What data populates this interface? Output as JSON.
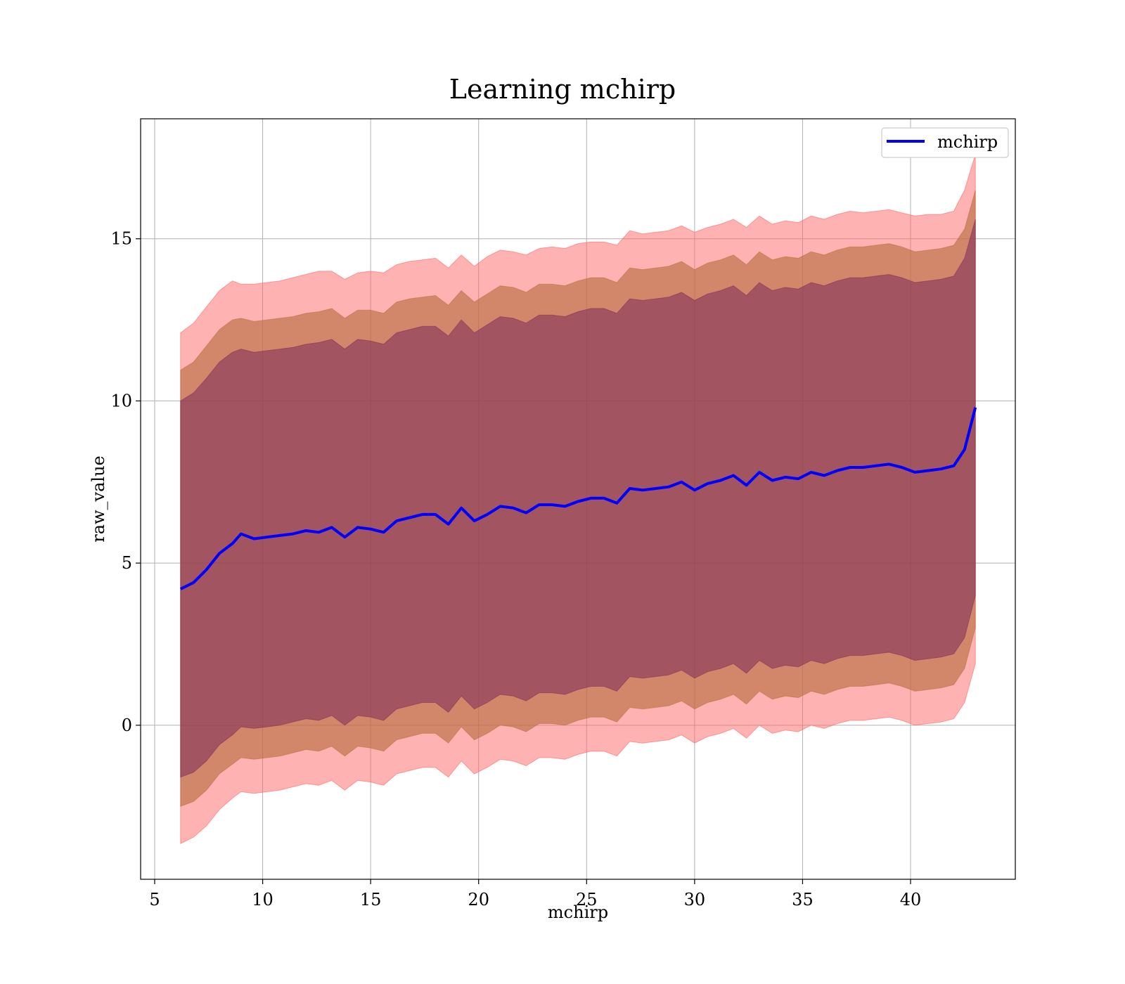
{
  "chart_data": {
    "type": "line",
    "title": "Learning mchirp",
    "xlabel": "mchirp",
    "ylabel": "raw_value",
    "xlim": [
      4.35,
      44.85
    ],
    "ylim": [
      -4.75,
      18.7
    ],
    "xticks": [
      5,
      10,
      15,
      20,
      25,
      30,
      35,
      40
    ],
    "yticks": [
      0,
      5,
      10,
      15
    ],
    "grid": true,
    "legend_position": "top-right",
    "colors": {
      "line": "#0000ff",
      "band_outer": "#ff6666",
      "band_middle": "#b56a3a",
      "band_inner": "#7a2a5a",
      "grid": "#b0b0b0"
    },
    "series": [
      {
        "name": "mchirp",
        "x": [
          6.2,
          6.8,
          7.4,
          8.0,
          8.6,
          9.0,
          9.6,
          10.2,
          10.8,
          11.4,
          12.0,
          12.6,
          13.2,
          13.8,
          14.4,
          15.0,
          15.6,
          16.2,
          16.8,
          17.4,
          18.0,
          18.6,
          19.2,
          19.8,
          20.4,
          21.0,
          21.6,
          22.2,
          22.8,
          23.4,
          24.0,
          24.6,
          25.2,
          25.8,
          26.4,
          27.0,
          27.6,
          28.2,
          28.8,
          29.4,
          30.0,
          30.6,
          31.2,
          31.8,
          32.4,
          33.0,
          33.6,
          34.2,
          34.8,
          35.4,
          36.0,
          36.6,
          37.2,
          37.8,
          38.4,
          39.0,
          39.6,
          40.2,
          40.8,
          41.4,
          42.0,
          42.5,
          43.0
        ],
        "y": [
          4.2,
          4.4,
          4.8,
          5.3,
          5.6,
          5.9,
          5.75,
          5.8,
          5.85,
          5.9,
          6.0,
          5.95,
          6.1,
          5.8,
          6.1,
          6.05,
          5.95,
          6.3,
          6.4,
          6.5,
          6.5,
          6.2,
          6.7,
          6.3,
          6.5,
          6.75,
          6.7,
          6.55,
          6.8,
          6.8,
          6.75,
          6.9,
          7.0,
          7.0,
          6.85,
          7.3,
          7.25,
          7.3,
          7.35,
          7.5,
          7.25,
          7.45,
          7.55,
          7.7,
          7.4,
          7.8,
          7.55,
          7.65,
          7.6,
          7.8,
          7.7,
          7.85,
          7.95,
          7.95,
          8.0,
          8.05,
          7.95,
          7.8,
          7.85,
          7.9,
          8.0,
          8.5,
          9.8
        ]
      }
    ],
    "bands": {
      "outer_upper": [
        12.1,
        12.4,
        12.9,
        13.4,
        13.7,
        13.6,
        13.6,
        13.65,
        13.7,
        13.8,
        13.9,
        14.0,
        14.0,
        13.75,
        13.95,
        14.0,
        13.95,
        14.2,
        14.3,
        14.35,
        14.4,
        14.1,
        14.5,
        14.15,
        14.45,
        14.65,
        14.6,
        14.5,
        14.7,
        14.75,
        14.7,
        14.85,
        14.9,
        14.9,
        14.8,
        15.25,
        15.15,
        15.2,
        15.25,
        15.4,
        15.2,
        15.35,
        15.45,
        15.6,
        15.35,
        15.7,
        15.45,
        15.55,
        15.5,
        15.7,
        15.6,
        15.75,
        15.85,
        15.8,
        15.85,
        15.9,
        15.8,
        15.7,
        15.75,
        15.75,
        15.85,
        16.5,
        17.6
      ],
      "middle_upper": [
        10.95,
        11.2,
        11.7,
        12.2,
        12.5,
        12.55,
        12.45,
        12.5,
        12.55,
        12.6,
        12.7,
        12.75,
        12.85,
        12.55,
        12.8,
        12.8,
        12.7,
        13.05,
        13.15,
        13.2,
        13.25,
        12.95,
        13.4,
        13.05,
        13.3,
        13.55,
        13.5,
        13.35,
        13.6,
        13.6,
        13.55,
        13.7,
        13.8,
        13.8,
        13.65,
        14.1,
        14.05,
        14.1,
        14.15,
        14.3,
        14.05,
        14.25,
        14.35,
        14.5,
        14.2,
        14.6,
        14.35,
        14.45,
        14.4,
        14.6,
        14.5,
        14.65,
        14.75,
        14.75,
        14.8,
        14.85,
        14.75,
        14.6,
        14.65,
        14.7,
        14.8,
        15.3,
        16.5
      ],
      "inner_upper": [
        10.0,
        10.25,
        10.7,
        11.2,
        11.5,
        11.6,
        11.5,
        11.55,
        11.6,
        11.65,
        11.75,
        11.8,
        11.9,
        11.6,
        11.9,
        11.85,
        11.75,
        12.1,
        12.2,
        12.3,
        12.3,
        12.0,
        12.5,
        12.1,
        12.35,
        12.6,
        12.55,
        12.4,
        12.65,
        12.65,
        12.6,
        12.75,
        12.85,
        12.85,
        12.7,
        13.15,
        13.1,
        13.15,
        13.2,
        13.35,
        13.1,
        13.3,
        13.4,
        13.55,
        13.25,
        13.65,
        13.4,
        13.5,
        13.45,
        13.65,
        13.55,
        13.7,
        13.8,
        13.8,
        13.85,
        13.9,
        13.8,
        13.65,
        13.7,
        13.75,
        13.85,
        14.4,
        15.6
      ],
      "inner_lower": [
        -1.6,
        -1.45,
        -1.1,
        -0.6,
        -0.3,
        -0.05,
        -0.1,
        -0.05,
        0.0,
        0.1,
        0.2,
        0.15,
        0.3,
        0.0,
        0.3,
        0.25,
        0.15,
        0.5,
        0.6,
        0.7,
        0.7,
        0.4,
        0.9,
        0.5,
        0.7,
        0.95,
        0.9,
        0.75,
        1.0,
        1.0,
        0.95,
        1.1,
        1.2,
        1.2,
        1.05,
        1.5,
        1.45,
        1.5,
        1.55,
        1.7,
        1.45,
        1.65,
        1.75,
        1.9,
        1.6,
        2.0,
        1.75,
        1.85,
        1.8,
        2.0,
        1.9,
        2.05,
        2.15,
        2.15,
        2.2,
        2.25,
        2.15,
        2.0,
        2.05,
        2.1,
        2.2,
        2.7,
        4.0
      ],
      "middle_lower": [
        -2.5,
        -2.35,
        -2.0,
        -1.5,
        -1.2,
        -1.0,
        -1.05,
        -1.0,
        -0.95,
        -0.85,
        -0.75,
        -0.8,
        -0.65,
        -0.95,
        -0.65,
        -0.7,
        -0.8,
        -0.45,
        -0.35,
        -0.25,
        -0.25,
        -0.55,
        -0.05,
        -0.45,
        -0.25,
        0.0,
        -0.05,
        -0.2,
        0.05,
        0.05,
        0.0,
        0.15,
        0.25,
        0.25,
        0.1,
        0.55,
        0.5,
        0.55,
        0.6,
        0.75,
        0.5,
        0.7,
        0.8,
        0.95,
        0.65,
        1.05,
        0.8,
        0.9,
        0.85,
        1.05,
        0.95,
        1.1,
        1.2,
        1.2,
        1.25,
        1.3,
        1.2,
        1.05,
        1.1,
        1.15,
        1.25,
        1.75,
        3.0
      ],
      "outer_lower": [
        -3.65,
        -3.45,
        -3.1,
        -2.6,
        -2.25,
        -2.05,
        -2.1,
        -2.05,
        -2.0,
        -1.9,
        -1.8,
        -1.85,
        -1.7,
        -2.0,
        -1.7,
        -1.75,
        -1.85,
        -1.5,
        -1.4,
        -1.3,
        -1.3,
        -1.6,
        -1.1,
        -1.5,
        -1.3,
        -1.05,
        -1.1,
        -1.25,
        -1.0,
        -1.0,
        -1.05,
        -0.9,
        -0.8,
        -0.8,
        -0.95,
        -0.5,
        -0.55,
        -0.5,
        -0.45,
        -0.3,
        -0.55,
        -0.35,
        -0.25,
        -0.1,
        -0.4,
        0.0,
        -0.25,
        -0.15,
        -0.2,
        0.0,
        -0.1,
        0.05,
        0.15,
        0.15,
        0.2,
        0.25,
        0.15,
        0.0,
        0.05,
        0.1,
        0.2,
        0.7,
        1.9
      ]
    }
  }
}
